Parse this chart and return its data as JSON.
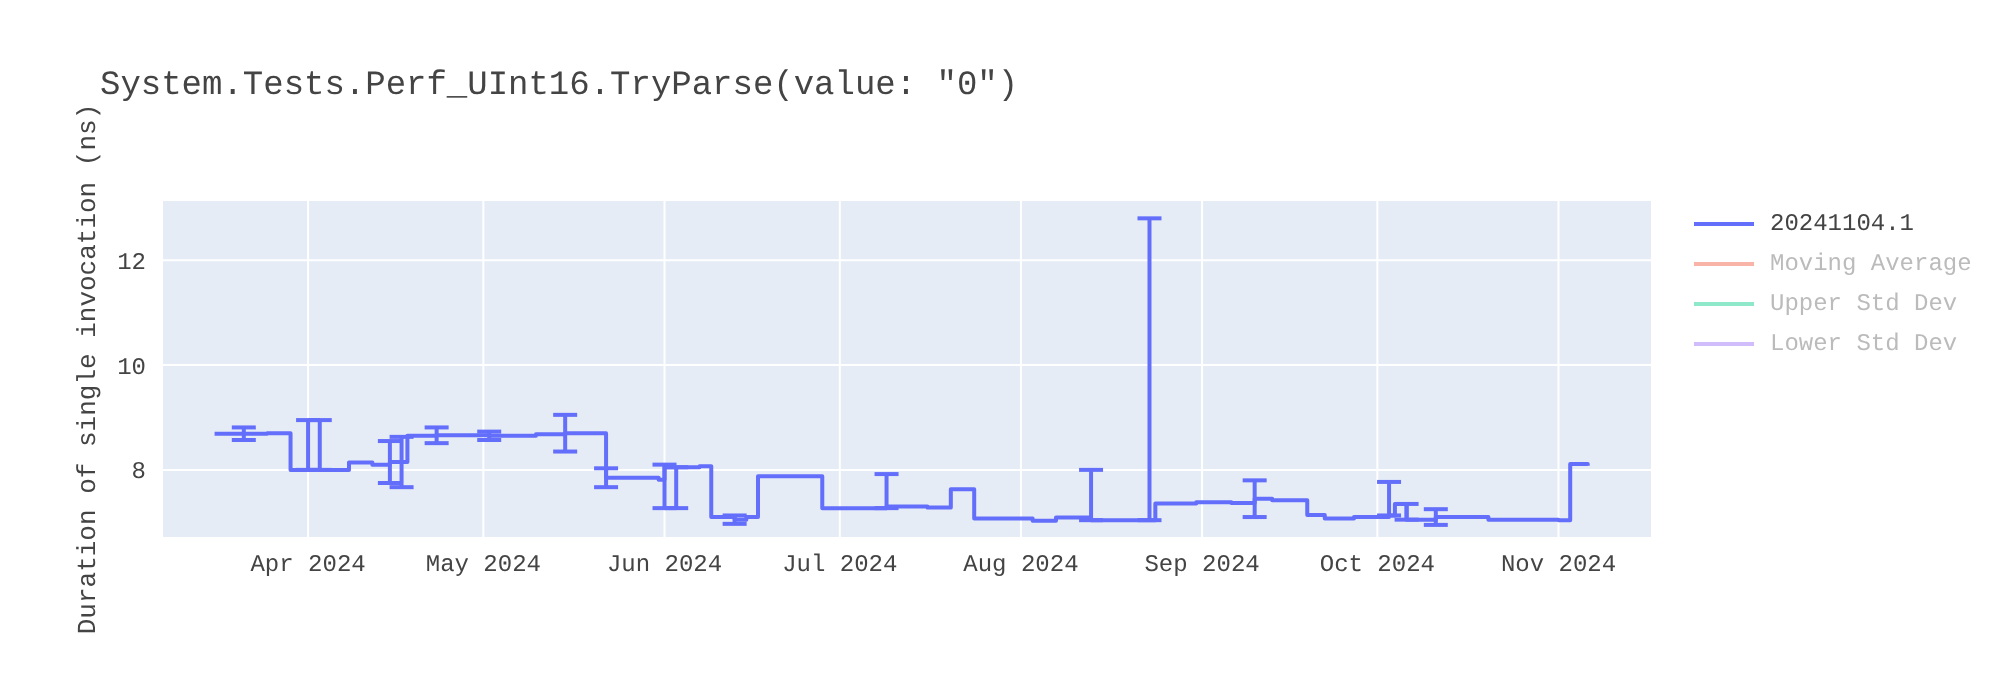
{
  "chart_data": {
    "type": "step",
    "title": "System.Tests.Perf_UInt16.TryParse(value: \"0\")",
    "ylabel": "Duration of single invocation (ns)",
    "x": [
      "2024-03-16",
      "2024-03-21",
      "2024-03-25",
      "2024-03-29",
      "2024-04-01",
      "2024-04-03",
      "2024-04-08",
      "2024-04-12",
      "2024-04-15",
      "2024-04-17",
      "2024-04-18",
      "2024-04-23",
      "2024-05-02",
      "2024-05-10",
      "2024-05-15",
      "2024-05-21",
      "2024-05-22",
      "2024-05-31",
      "2024-06-01",
      "2024-06-03",
      "2024-06-07",
      "2024-06-09",
      "2024-06-13",
      "2024-06-15",
      "2024-06-17",
      "2024-06-28",
      "2024-07-09",
      "2024-07-16",
      "2024-07-20",
      "2024-07-24",
      "2024-08-03",
      "2024-08-07",
      "2024-08-13",
      "2024-08-23",
      "2024-08-24",
      "2024-08-31",
      "2024-09-06",
      "2024-09-10",
      "2024-09-13",
      "2024-09-19",
      "2024-09-22",
      "2024-09-27",
      "2024-10-03",
      "2024-10-04",
      "2024-10-06",
      "2024-10-11",
      "2024-10-20",
      "2024-11-01",
      "2024-11-03",
      "2024-11-06"
    ],
    "series": [
      {
        "name": "20241104.1",
        "color": "#636efa",
        "values": [
          8.69,
          8.69,
          8.7,
          8.0,
          8.0,
          8.0,
          8.14,
          8.1,
          8.15,
          8.15,
          8.65,
          8.66,
          8.65,
          8.68,
          8.7,
          8.7,
          7.85,
          7.81,
          8.05,
          8.05,
          8.07,
          7.1,
          7.05,
          7.1,
          7.88,
          7.27,
          7.3,
          7.28,
          7.63,
          7.07,
          7.03,
          7.09,
          7.04,
          7.04,
          7.36,
          7.38,
          7.37,
          7.45,
          7.42,
          7.14,
          7.07,
          7.1,
          7.13,
          7.35,
          7.05,
          7.1,
          7.05,
          7.04,
          8.11,
          8.08
        ],
        "errors": [
          null,
          0.12,
          null,
          null,
          [
            8.0,
            8.95
          ],
          [
            8.0,
            8.95
          ],
          null,
          null,
          0.4,
          0.48,
          null,
          0.15,
          0.08,
          null,
          0.35,
          null,
          0.18,
          null,
          [
            7.27,
            8.1
          ],
          [
            7.27,
            8.05
          ],
          null,
          null,
          0.08,
          null,
          null,
          null,
          [
            7.27,
            7.92
          ],
          null,
          null,
          null,
          null,
          null,
          [
            7.04,
            8.0
          ],
          [
            7.04,
            12.8
          ],
          null,
          null,
          null,
          0.35,
          null,
          null,
          null,
          null,
          [
            7.13,
            7.77
          ],
          null,
          [
            7.05,
            7.35
          ],
          0.15,
          null,
          null,
          null,
          null
        ]
      },
      {
        "name": "Moving Average",
        "color": "#f7b4a7",
        "values": [
          null,
          null,
          null,
          null,
          null,
          null,
          null,
          null,
          null,
          null,
          null,
          null,
          null,
          null,
          null,
          null,
          null,
          null,
          null,
          null,
          null,
          null,
          null,
          null,
          null,
          null,
          null,
          null,
          null,
          null,
          null,
          null,
          null,
          null,
          null,
          null,
          null,
          null,
          null,
          null,
          null,
          null,
          null,
          null,
          null,
          null,
          null,
          null,
          null,
          null
        ]
      },
      {
        "name": "Upper Std Dev",
        "color": "#8ee8c9",
        "values": [
          null,
          null,
          null,
          null,
          null,
          null,
          null,
          null,
          null,
          null,
          null,
          null,
          null,
          null,
          null,
          null,
          null,
          null,
          null,
          null,
          null,
          null,
          null,
          null,
          null,
          null,
          null,
          null,
          null,
          null,
          null,
          null,
          null,
          null,
          null,
          null,
          null,
          null,
          null,
          null,
          null,
          null,
          null,
          null,
          null,
          null,
          null,
          null,
          null,
          null
        ]
      },
      {
        "name": "Lower Std Dev",
        "color": "#d1bdfb",
        "values": [
          null,
          null,
          null,
          null,
          null,
          null,
          null,
          null,
          null,
          null,
          null,
          null,
          null,
          null,
          null,
          null,
          null,
          null,
          null,
          null,
          null,
          null,
          null,
          null,
          null,
          null,
          null,
          null,
          null,
          null,
          null,
          null,
          null,
          null,
          null,
          null,
          null,
          null,
          null,
          null,
          null,
          null,
          null,
          null,
          null,
          null,
          null,
          null,
          null,
          null
        ]
      }
    ],
    "xlim": [
      "2024-03-07",
      "2024-11-17"
    ],
    "xticks": [
      {
        "value": "2024-04-01",
        "label": "Apr 2024"
      },
      {
        "value": "2024-05-01",
        "label": "May 2024"
      },
      {
        "value": "2024-06-01",
        "label": "Jun 2024"
      },
      {
        "value": "2024-07-01",
        "label": "Jul 2024"
      },
      {
        "value": "2024-08-01",
        "label": "Aug 2024"
      },
      {
        "value": "2024-09-01",
        "label": "Sep 2024"
      },
      {
        "value": "2024-10-01",
        "label": "Oct 2024"
      },
      {
        "value": "2024-11-01",
        "label": "Nov 2024"
      }
    ],
    "ylim": [
      6.7,
      13.15
    ],
    "yticks": [
      8,
      10,
      12
    ],
    "grid": true,
    "legend": "top right",
    "marker": "none",
    "line_style": "solid"
  }
}
